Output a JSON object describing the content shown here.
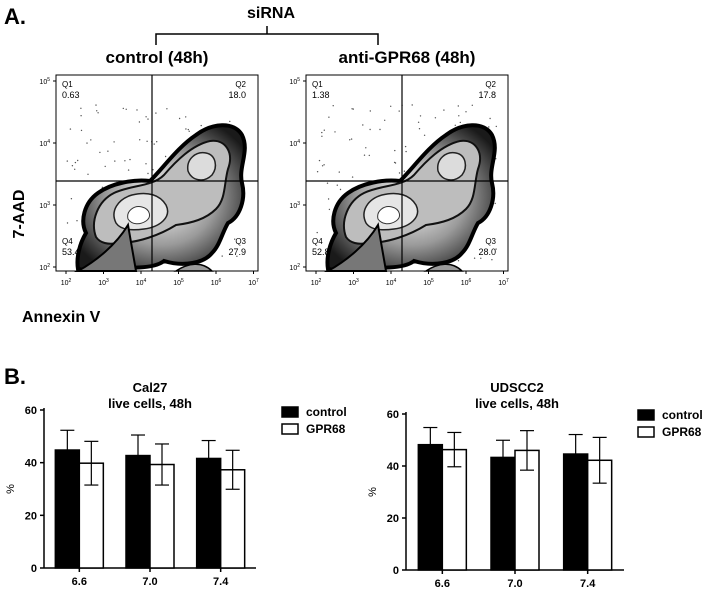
{
  "panel_a": {
    "label": "A.",
    "bracket_label": "siRNA",
    "y_axis_label": "7-AAD",
    "x_axis_label": "Annexin V",
    "plots": [
      {
        "title": "control (48h)",
        "quadrants": [
          {
            "name": "Q1",
            "value": "0.63"
          },
          {
            "name": "Q2",
            "value": "18.0"
          },
          {
            "name": "Q3",
            "value": "27.9"
          },
          {
            "name": "Q4",
            "value": "53.4"
          }
        ]
      },
      {
        "title": "anti-GPR68 (48h)",
        "quadrants": [
          {
            "name": "Q1",
            "value": "1.38"
          },
          {
            "name": "Q2",
            "value": "17.8"
          },
          {
            "name": "Q3",
            "value": "28.0"
          },
          {
            "name": "Q4",
            "value": "52.8"
          }
        ]
      }
    ],
    "axis_exponents": [
      "2",
      "3",
      "4",
      "5",
      "6",
      "7"
    ],
    "tick_base": "10"
  },
  "panel_b": {
    "label": "B."
  },
  "chart_data": [
    {
      "type": "bar",
      "title": "Cal27\nlive cells, 48h",
      "ylabel": "%",
      "xlabel": "",
      "categories": [
        "6.6",
        "7.0",
        "7.4"
      ],
      "ylim": [
        0,
        60
      ],
      "yticks": [
        0,
        20,
        40,
        60
      ],
      "legend_placement": "top-right",
      "series": [
        {
          "name": "control",
          "values": [
            44.8,
            42.7,
            41.6
          ],
          "error": [
            7.5,
            7.8,
            6.8
          ],
          "color": "#000000"
        },
        {
          "name": "GPR68",
          "values": [
            39.8,
            39.3,
            37.3
          ],
          "error": [
            8.3,
            7.8,
            7.4
          ],
          "color": "#ffffff"
        }
      ]
    },
    {
      "type": "bar",
      "title": "UDSCC2\nlive cells, 48h",
      "ylabel": "%",
      "xlabel": "",
      "categories": [
        "6.6",
        "7.0",
        "7.4"
      ],
      "ylim": [
        0,
        60
      ],
      "yticks": [
        0,
        20,
        40,
        60
      ],
      "legend_placement": "top-right",
      "series": [
        {
          "name": "control",
          "values": [
            48.2,
            43.3,
            44.6
          ],
          "error": [
            6.6,
            6.6,
            7.5
          ],
          "color": "#000000"
        },
        {
          "name": "GPR68",
          "values": [
            46.3,
            46.0,
            42.2
          ],
          "error": [
            6.6,
            7.6,
            8.8
          ],
          "color": "#ffffff"
        }
      ]
    }
  ]
}
